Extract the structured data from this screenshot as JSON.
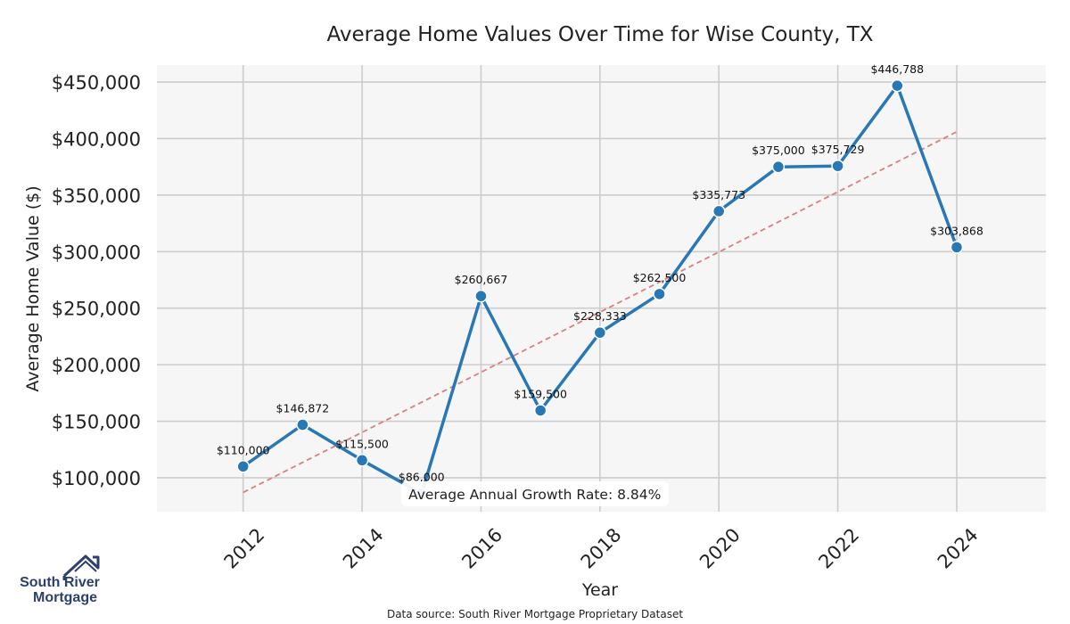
{
  "chart_data": {
    "type": "line",
    "title": "Average Home Values Over Time for Wise County, TX",
    "xlabel": "Year",
    "ylabel": "Average Home Value ($)",
    "x": [
      2012,
      2013,
      2014,
      2015,
      2016,
      2017,
      2018,
      2019,
      2020,
      2021,
      2022,
      2023,
      2024
    ],
    "x_ticks": [
      2012,
      2014,
      2016,
      2018,
      2020,
      2022,
      2024
    ],
    "x_tick_labels": [
      "2012",
      "2014",
      "2016",
      "2018",
      "2020",
      "2022",
      "2024"
    ],
    "y_ticks": [
      100000,
      150000,
      200000,
      250000,
      300000,
      350000,
      400000,
      450000
    ],
    "y_tick_labels": [
      "$100,000",
      "$150,000",
      "$200,000",
      "$250,000",
      "$300,000",
      "$350,000",
      "$400,000",
      "$450,000"
    ],
    "xlim": [
      2010.55,
      2025.5
    ],
    "ylim": [
      70000,
      465000
    ],
    "grid": true,
    "series": [
      {
        "values": [
          110000,
          146872,
          115500,
          86000,
          260667,
          159500,
          228333,
          262500,
          335773,
          375000,
          375729,
          446788,
          303868
        ],
        "data_labels": [
          "$110,000",
          "$146,872",
          "$115,500",
          "$86,000",
          "$260,667",
          "$159,500",
          "$228,333",
          "$262,500",
          "$335,773",
          "$375,000",
          "$375,729",
          "$446,788",
          "$303,868"
        ],
        "color": "#2878b5"
      }
    ],
    "trendline": {
      "start": [
        2012,
        87000
      ],
      "end": [
        2024,
        406000
      ],
      "color": "#d88080",
      "style": "dashed"
    },
    "annotation": "Average Annual Growth Rate: 8.84%",
    "plot_background": "#f6f6f6",
    "grid_color": "#cccccc"
  },
  "footer": {
    "source": "Data source: South River Mortgage Proprietary Dataset"
  },
  "logo": {
    "line1": "South River",
    "line2": "Mortgage",
    "color": "#2c3f6e"
  }
}
